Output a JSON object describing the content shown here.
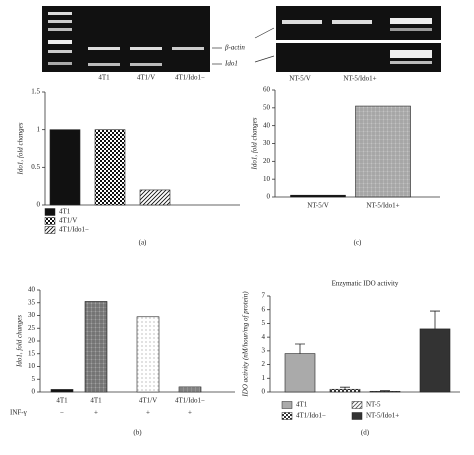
{
  "gels": {
    "left_lanes": [
      "4T1",
      "4T1/V",
      "4T1/Ido1−"
    ],
    "right_lanes": [
      "NT-5/V",
      "NT-5/Ido1+"
    ],
    "bands": [
      "β-actin",
      "Ido1"
    ]
  },
  "chart_data": [
    {
      "type": "bar",
      "panel": "(a)",
      "y_label": "Ido1, fold changes",
      "ylim": [
        0,
        1.5
      ],
      "yticks": [
        0,
        0.5,
        1,
        1.5
      ],
      "series": [
        {
          "name": "4T1",
          "color": "#111111",
          "pattern": "solid",
          "values": [
            1
          ]
        },
        {
          "name": "4T1/V",
          "color": "#111111",
          "pattern": "checker",
          "values": [
            1
          ]
        },
        {
          "name": "4T1/Ido1−",
          "color": "#111111",
          "pattern": "hatch",
          "values": [
            0.2
          ]
        }
      ]
    },
    {
      "type": "bar",
      "panel": "(b)",
      "y_label": "Ido1, fold changes",
      "ylim": [
        0,
        40
      ],
      "yticks": [
        0,
        5,
        10,
        15,
        20,
        25,
        30,
        35,
        40
      ],
      "categories": [
        "4T1",
        "4T1",
        "4T1/V",
        "4T1/Ido1−"
      ],
      "values": [
        1,
        35.5,
        29.5,
        2
      ],
      "colors": [
        "#111111",
        "#444444",
        "#999999",
        "#555555"
      ],
      "patterns": [
        "solid",
        "grid",
        "dots",
        "grid"
      ],
      "treatment": {
        "label": "INF-γ",
        "values": [
          "−",
          "+",
          "+",
          "+"
        ]
      }
    },
    {
      "type": "bar",
      "panel": "(c)",
      "y_label": "Ido1, fold changes",
      "ylim": [
        0,
        60
      ],
      "yticks": [
        0,
        10,
        20,
        30,
        40,
        50,
        60
      ],
      "categories": [
        "NT-5/V",
        "NT-5/Ido1+"
      ],
      "values": [
        1,
        51
      ],
      "colors": [
        "#111111",
        "#888888"
      ],
      "patterns": [
        "solid",
        "grid"
      ]
    },
    {
      "type": "bar",
      "panel": "(d)",
      "title": "Enzymatic IDO activity",
      "y_label": "IDO activity (nM/hour/mg of protein)",
      "ylim": [
        0,
        7
      ],
      "yticks": [
        0,
        1,
        2,
        3,
        4,
        5,
        6,
        7
      ],
      "series": [
        {
          "name": "4T1",
          "color": "#aaaaaa",
          "pattern": "solid",
          "values": [
            2.8
          ],
          "errors": [
            0.7
          ]
        },
        {
          "name": "4T1/Ido1−",
          "color": "#333333",
          "pattern": "checker",
          "values": [
            0.2
          ],
          "errors": [
            0.15
          ]
        },
        {
          "name": "NT-5",
          "color": "#555555",
          "pattern": "hatch",
          "values": [
            0.05
          ],
          "errors": [
            0.05
          ]
        },
        {
          "name": "NT-5/Ido1+",
          "color": "#333333",
          "pattern": "solid",
          "values": [
            4.6
          ],
          "errors": [
            1.3
          ]
        }
      ]
    }
  ]
}
